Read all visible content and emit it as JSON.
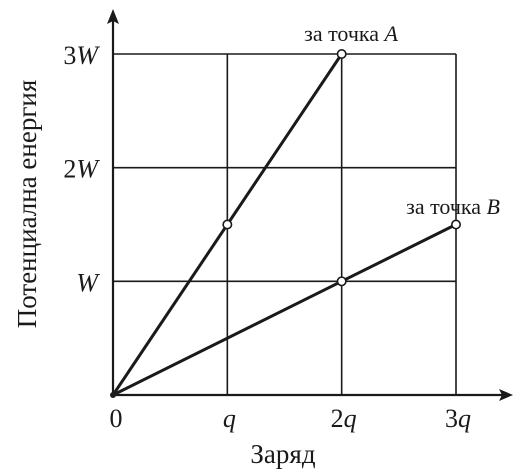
{
  "chart_data": {
    "type": "line",
    "xlabel": "Заряд",
    "ylabel": "Потенциална енергия",
    "xlim": [
      0,
      3
    ],
    "ylim": [
      0,
      3
    ],
    "x_ticks": [
      {
        "value": 0,
        "label": "0",
        "num": "0",
        "sym": ""
      },
      {
        "value": 1,
        "label": "q",
        "num": "",
        "sym": "q"
      },
      {
        "value": 2,
        "label": "2q",
        "num": "2",
        "sym": "q"
      },
      {
        "value": 3,
        "label": "3q",
        "num": "3",
        "sym": "q"
      }
    ],
    "y_ticks": [
      {
        "value": 1,
        "label": "W",
        "num": "",
        "sym": "W"
      },
      {
        "value": 2,
        "label": "2W",
        "num": "2",
        "sym": "W"
      },
      {
        "value": 3,
        "label": "3W",
        "num": "3",
        "sym": "W"
      }
    ],
    "grid": true,
    "series": [
      {
        "name": "за точка A",
        "prefix": "за точка",
        "point": "A",
        "x": [
          0,
          1,
          2
        ],
        "y": [
          0,
          1.5,
          3
        ]
      },
      {
        "name": "за точка B",
        "prefix": "за точка",
        "point": "B",
        "x": [
          0,
          2,
          3
        ],
        "y": [
          0,
          1,
          1.5
        ]
      }
    ]
  }
}
